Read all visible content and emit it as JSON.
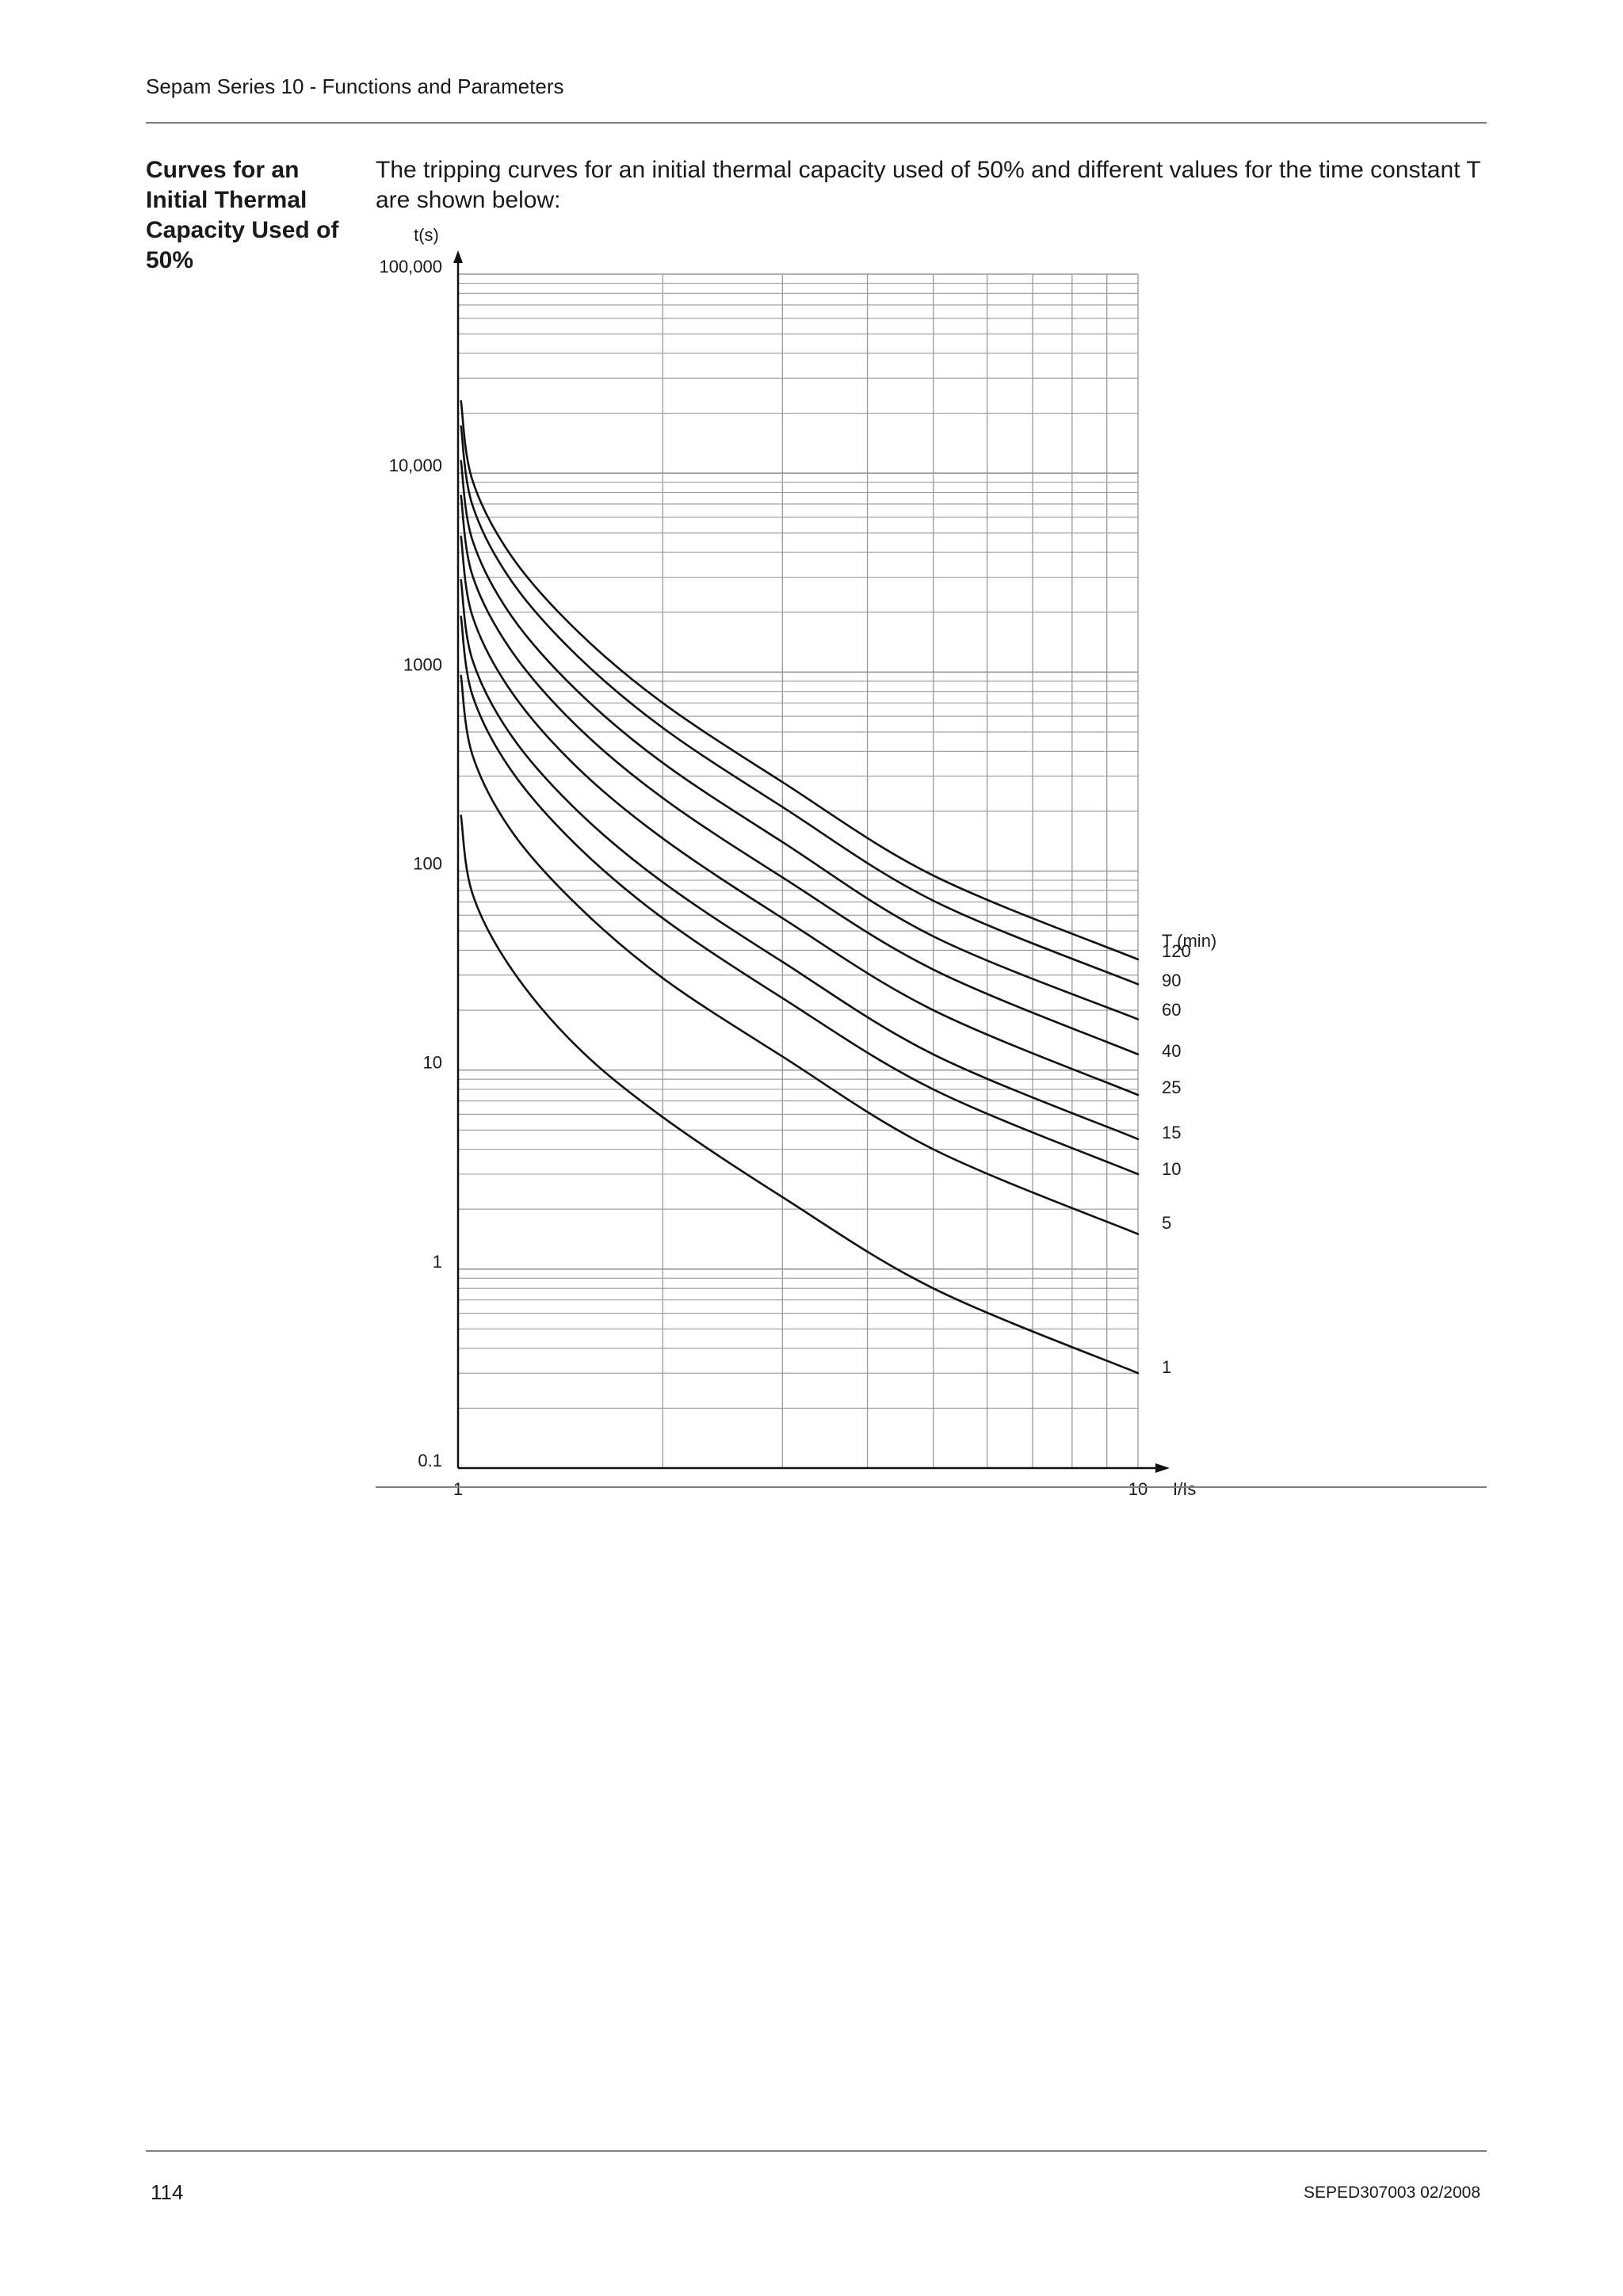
{
  "header": {
    "title": "Sepam Series 10 - Functions and Parameters"
  },
  "section": {
    "heading": "Curves for an Initial Thermal Capacity Used of 50%",
    "intro": "The tripping curves for an initial thermal capacity used of 50% and different values for the time constant T are shown below:"
  },
  "chart_data": {
    "type": "line",
    "x_scale": "log",
    "y_scale": "log",
    "xlabel": "I/Is",
    "ylabel": "t(s)",
    "xlim": [
      1,
      10
    ],
    "ylim": [
      0.1,
      100000
    ],
    "x_ticks": [
      "1",
      "10"
    ],
    "y_ticks": [
      "100,000",
      "10,000",
      "1000",
      "100",
      "10",
      "1",
      "0.1"
    ],
    "legend_title": "T (min)",
    "grid": true,
    "series": [
      {
        "name": "120",
        "T_min": 120,
        "points": [
          [
            1.01,
            23000
          ],
          [
            1.05,
            9200
          ],
          [
            1.2,
            3800
          ],
          [
            1.5,
            1600
          ],
          [
            2,
            700
          ],
          [
            3,
            280
          ],
          [
            5,
            95
          ],
          [
            10,
            36
          ]
        ]
      },
      {
        "name": "90",
        "T_min": 90,
        "points": [
          [
            1.01,
            17200
          ],
          [
            1.05,
            6900
          ],
          [
            1.2,
            2850
          ],
          [
            1.5,
            1200
          ],
          [
            2,
            525
          ],
          [
            3,
            210
          ],
          [
            5,
            71
          ],
          [
            10,
            27
          ]
        ]
      },
      {
        "name": "60",
        "T_min": 60,
        "points": [
          [
            1.01,
            11500
          ],
          [
            1.05,
            4600
          ],
          [
            1.2,
            1900
          ],
          [
            1.5,
            800
          ],
          [
            2,
            350
          ],
          [
            3,
            140
          ],
          [
            5,
            47
          ],
          [
            10,
            18
          ]
        ]
      },
      {
        "name": "40",
        "T_min": 40,
        "points": [
          [
            1.01,
            7700
          ],
          [
            1.05,
            3060
          ],
          [
            1.2,
            1270
          ],
          [
            1.5,
            530
          ],
          [
            2,
            233
          ],
          [
            3,
            93
          ],
          [
            5,
            32
          ],
          [
            10,
            12
          ]
        ]
      },
      {
        "name": "25",
        "T_min": 25,
        "points": [
          [
            1.01,
            4800
          ],
          [
            1.05,
            1910
          ],
          [
            1.2,
            790
          ],
          [
            1.5,
            330
          ],
          [
            2,
            146
          ],
          [
            3,
            58
          ],
          [
            5,
            20
          ],
          [
            10,
            7.5
          ]
        ]
      },
      {
        "name": "15",
        "T_min": 15,
        "points": [
          [
            1.01,
            2900
          ],
          [
            1.05,
            1150
          ],
          [
            1.2,
            475
          ],
          [
            1.5,
            200
          ],
          [
            2,
            88
          ],
          [
            3,
            35
          ],
          [
            5,
            12
          ],
          [
            10,
            4.5
          ]
        ]
      },
      {
        "name": "10",
        "T_min": 10,
        "points": [
          [
            1.01,
            1900
          ],
          [
            1.05,
            765
          ],
          [
            1.2,
            317
          ],
          [
            1.5,
            133
          ],
          [
            2,
            58
          ],
          [
            3,
            23
          ],
          [
            5,
            8
          ],
          [
            10,
            3
          ]
        ]
      },
      {
        "name": "5",
        "T_min": 5,
        "points": [
          [
            1.01,
            960
          ],
          [
            1.05,
            383
          ],
          [
            1.2,
            158
          ],
          [
            1.5,
            67
          ],
          [
            2,
            29
          ],
          [
            3,
            11.7
          ],
          [
            5,
            4
          ],
          [
            10,
            1.5
          ]
        ]
      },
      {
        "name": "1",
        "T_min": 1,
        "points": [
          [
            1.01,
            190
          ],
          [
            1.05,
            77
          ],
          [
            1.2,
            32
          ],
          [
            1.5,
            13
          ],
          [
            2,
            5.8
          ],
          [
            3,
            2.3
          ],
          [
            5,
            0.8
          ],
          [
            10,
            0.3
          ]
        ]
      }
    ]
  },
  "footer": {
    "page_number": "114",
    "doc_ref": "SEPED307003 02/2008"
  }
}
